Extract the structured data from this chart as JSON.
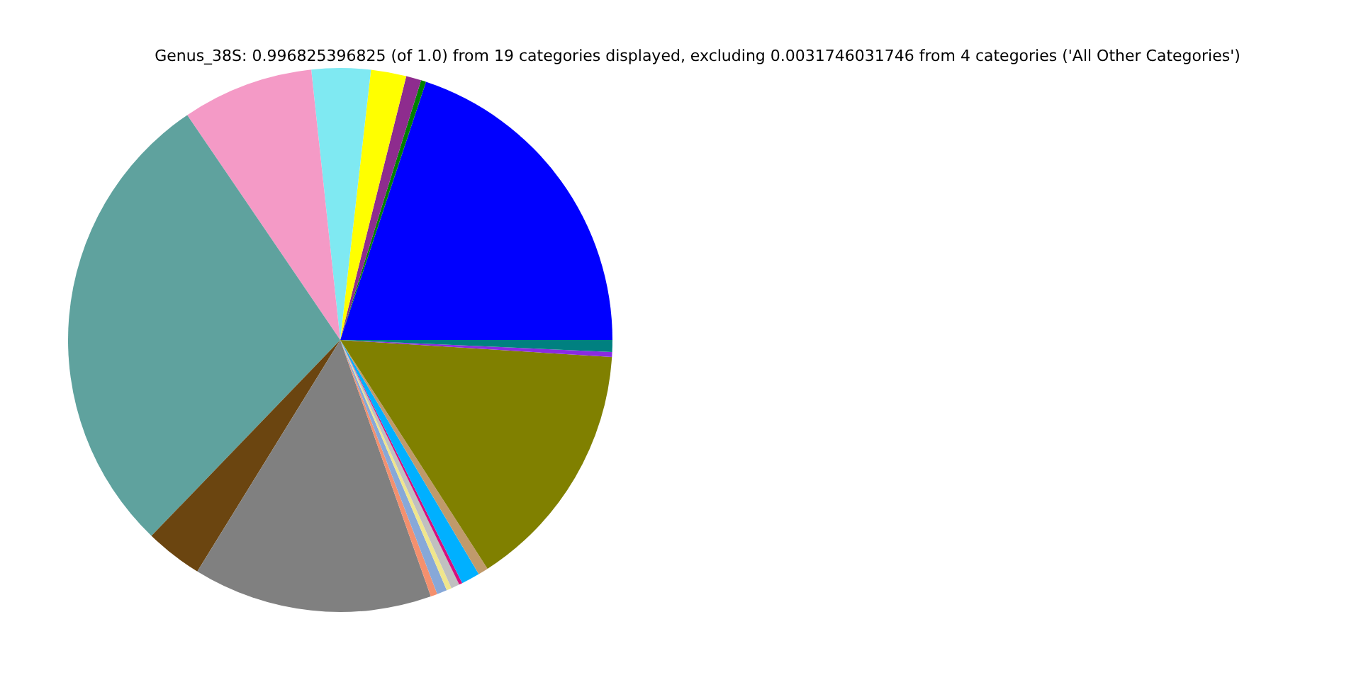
{
  "chart_data": {
    "type": "pie",
    "title": "Genus_38S: 0.996825396825 (of 1.0) from 19 categories displayed, excluding 0.0031746031746 from 4 categories ('All Other Categories')",
    "categories": [
      null,
      null,
      null,
      null,
      null,
      null,
      null,
      null,
      null,
      null,
      null,
      null,
      null,
      null,
      null,
      null,
      null,
      null,
      null
    ],
    "values": [
      19.9,
      0.3,
      0.9,
      2.1,
      3.5,
      7.8,
      28.3,
      3.4,
      14.2,
      0.4,
      0.6,
      0.3,
      0.5,
      0.2,
      1.1,
      0.6,
      14.9,
      0.3,
      0.7
    ],
    "colors": [
      "#0000ff",
      "#008000",
      "#8e2c8e",
      "#ffff00",
      "#7fe9f2",
      "#f49ac6",
      "#5fa29e",
      "#6b4510",
      "#808080",
      "#f4906e",
      "#87a8d8",
      "#f0e68c",
      "#c0c0c0",
      "#d6107e",
      "#00b0ff",
      "#c09a6b",
      "#808000",
      "#8a2be2",
      "#008080"
    ],
    "legend": false
  }
}
